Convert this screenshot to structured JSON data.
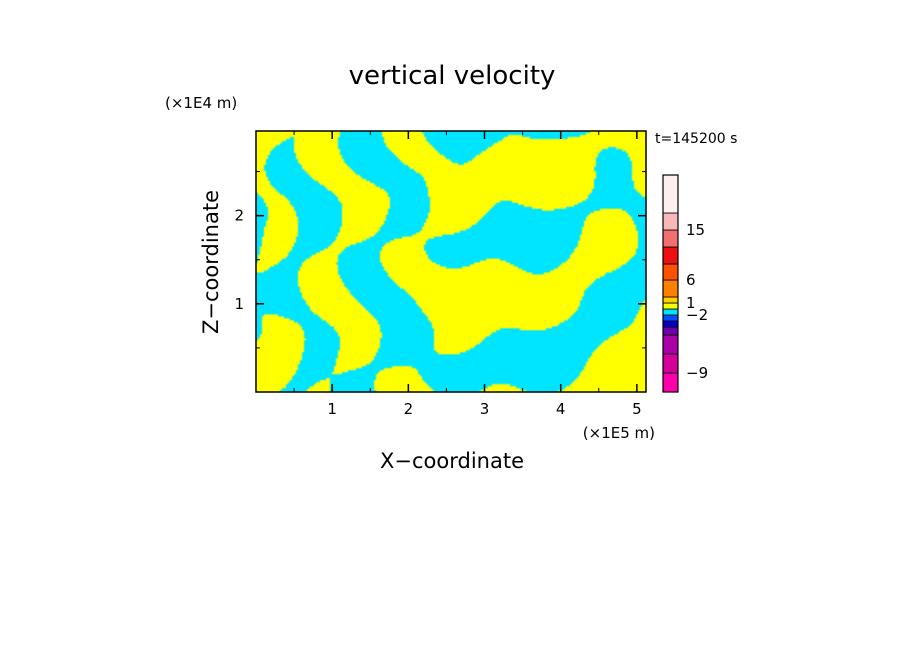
{
  "chart_data": {
    "type": "heatmap",
    "title": "vertical velocity",
    "xlabel": "X−coordinate",
    "ylabel": "Z−coordinate",
    "x_unit": "(×1E5 m)",
    "y_unit": "(×1E4 m)",
    "time_label": "t=145200 s",
    "xlim": [
      0,
      5.12
    ],
    "ylim": [
      0,
      2.96
    ],
    "x_ticks": [
      1,
      2,
      3,
      4,
      5
    ],
    "x_tick_labels": [
      "1",
      "2",
      "3",
      "4",
      "5"
    ],
    "y_ticks": [
      1,
      2
    ],
    "y_tick_labels": [
      "1",
      "2"
    ],
    "field_colors": {
      "positive": "#ffff00",
      "negative": "#00e5ff",
      "negative_extreme": "#ff00ff"
    },
    "colorbar": {
      "bands": [
        {
          "color": "#ff00aa"
        },
        {
          "color": "#d4009a"
        },
        {
          "color": "#aa00aa"
        },
        {
          "color": "#6a00aa"
        },
        {
          "color": "#0000cc"
        },
        {
          "color": "#0050ff"
        },
        {
          "color": "#00e5ff"
        },
        {
          "color": "#ffff00"
        },
        {
          "color": "#ffd000"
        },
        {
          "color": "#ff8000"
        },
        {
          "color": "#ff5000"
        },
        {
          "color": "#ee1010"
        },
        {
          "color": "#f07070"
        },
        {
          "color": "#f8b8b8"
        },
        {
          "color": "#ffeeee"
        }
      ],
      "labels": [
        {
          "text": "15",
          "band": 13
        },
        {
          "text": "6",
          "band": 10
        },
        {
          "text": "1",
          "band": 8
        },
        {
          "text": "−2",
          "band": 6
        },
        {
          "text": "−9",
          "band": 1
        }
      ]
    }
  }
}
